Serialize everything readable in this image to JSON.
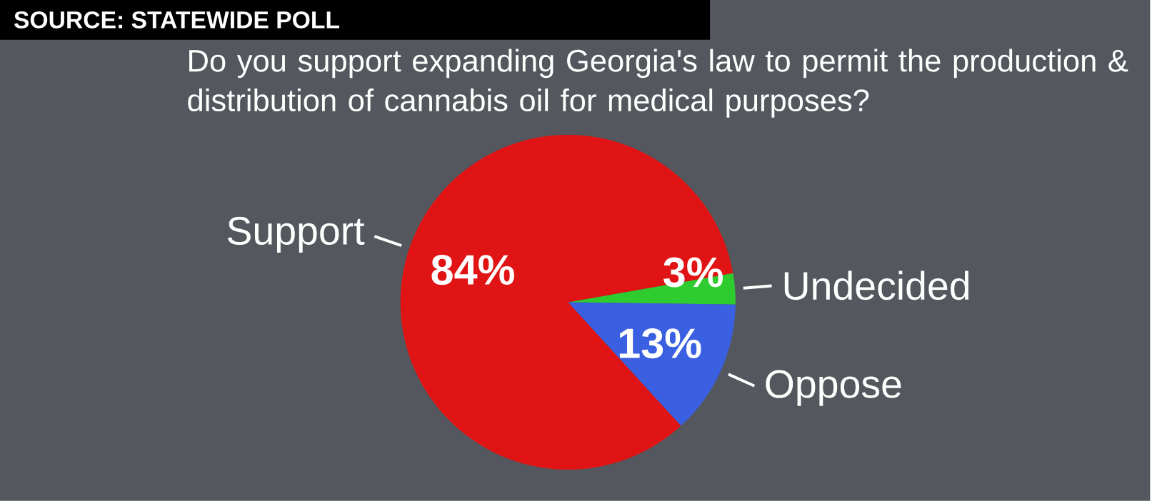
{
  "chart_data": {
    "type": "pie",
    "title": "Do you support expanding Georgia's law to permit the production & distribution of cannabis oil for medical purposes?",
    "annotations": [
      "SOURCE: STATEWIDE POLL"
    ],
    "categories": [
      "Undecided",
      "Oppose",
      "Support"
    ],
    "values": [
      3,
      13,
      84
    ],
    "value_labels": [
      "3%",
      "13%",
      "84%"
    ],
    "colors": [
      "#2ecc2e",
      "#3a5fe0",
      "#e01414"
    ]
  }
}
